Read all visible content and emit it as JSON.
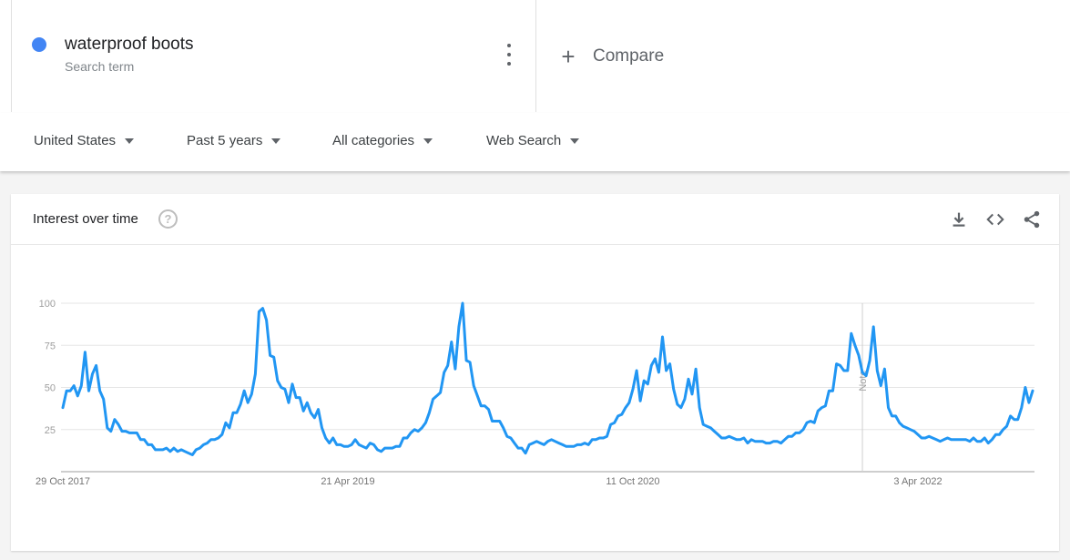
{
  "search_term": {
    "name": "waterproof boots",
    "subtitle": "Search term",
    "color": "#4285f4"
  },
  "compare": {
    "label": "Compare",
    "icon": "plus-icon"
  },
  "filters": [
    {
      "label": "United States"
    },
    {
      "label": "Past 5 years"
    },
    {
      "label": "All categories"
    },
    {
      "label": "Web Search"
    }
  ],
  "card": {
    "title": "Interest over time",
    "icons": [
      "help-icon",
      "download-icon",
      "embed-code-icon",
      "share-icon"
    ]
  },
  "chart_data": {
    "type": "line",
    "title": "",
    "xlabel": "",
    "ylabel": "",
    "ylim": [
      0,
      100
    ],
    "yticks": [
      25,
      50,
      75,
      100
    ],
    "xtick_labels": [
      {
        "label": "29 Oct 2017",
        "index": 0
      },
      {
        "label": "21 Apr 2019",
        "index": 77
      },
      {
        "label": "11 Oct 2020",
        "index": 154
      },
      {
        "label": "3 Apr 2022",
        "index": 231
      }
    ],
    "annotation": {
      "label": "Note",
      "index": 216
    },
    "grid": true,
    "line_color": "#2196f3",
    "series": [
      {
        "x_start": "29 Oct 2017",
        "interval": "weekly",
        "values": [
          38,
          48,
          48,
          51,
          45,
          51,
          71,
          48,
          58,
          63,
          48,
          43,
          26,
          24,
          31,
          28,
          24,
          24,
          23,
          23,
          23,
          19,
          19,
          16,
          16,
          13,
          13,
          13,
          14,
          12,
          14,
          12,
          13,
          12,
          11,
          10,
          13,
          14,
          16,
          17,
          19,
          19,
          20,
          22,
          29,
          26,
          35,
          35,
          40,
          48,
          41,
          46,
          58,
          95,
          97,
          90,
          69,
          68,
          54,
          50,
          49,
          41,
          52,
          44,
          44,
          36,
          41,
          35,
          32,
          37,
          26,
          20,
          17,
          20,
          16,
          16,
          15,
          15,
          16,
          19,
          16,
          15,
          14,
          17,
          16,
          13,
          12,
          14,
          14,
          14,
          15,
          15,
          20,
          20,
          23,
          25,
          24,
          26,
          29,
          35,
          43,
          45,
          47,
          59,
          63,
          77,
          61,
          86,
          100,
          66,
          65,
          51,
          45,
          39,
          39,
          37,
          30,
          30,
          30,
          26,
          21,
          20,
          17,
          14,
          14,
          11,
          16,
          17,
          18,
          17,
          16,
          18,
          19,
          18,
          17,
          16,
          15,
          15,
          15,
          16,
          16,
          17,
          16,
          19,
          19,
          20,
          20,
          21,
          28,
          29,
          33,
          34,
          38,
          41,
          49,
          60,
          42,
          54,
          52,
          63,
          67,
          59,
          80,
          60,
          64,
          49,
          40,
          38,
          43,
          55,
          46,
          61,
          38,
          28,
          27,
          26,
          24,
          22,
          20,
          20,
          21,
          20,
          19,
          19,
          20,
          17,
          19,
          18,
          18,
          18,
          17,
          17,
          18,
          18,
          17,
          19,
          21,
          21,
          23,
          23,
          25,
          29,
          30,
          29,
          36,
          38,
          39,
          48,
          48,
          64,
          63,
          60,
          60,
          82,
          75,
          69,
          59,
          57,
          66,
          86,
          60,
          51,
          61,
          38,
          33,
          33,
          29,
          27,
          26,
          25,
          24,
          22,
          20,
          20,
          21,
          20,
          19,
          18,
          19,
          20,
          19,
          19,
          19,
          19,
          19,
          18,
          20,
          18,
          18,
          20,
          17,
          19,
          22,
          22,
          25,
          27,
          33,
          31,
          31,
          38,
          50,
          41,
          48
        ]
      }
    ]
  }
}
